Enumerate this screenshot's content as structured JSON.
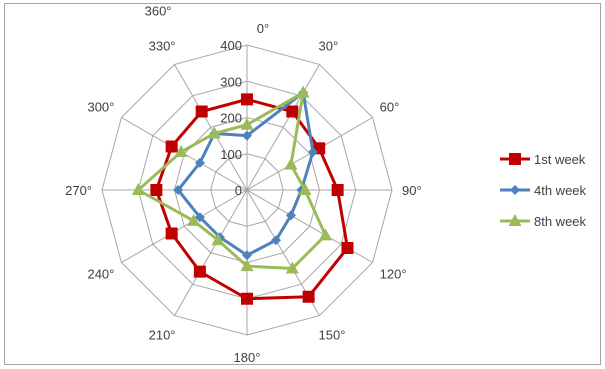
{
  "chart_data": {
    "type": "radar",
    "categories": [
      "0°",
      "30°",
      "60°",
      "90°",
      "120°",
      "150°",
      "180°",
      "210°",
      "240°",
      "270°",
      "300°",
      "330°"
    ],
    "extra_labels": {
      "360": "360°"
    },
    "radial_ticks": [
      "0",
      "100",
      "200",
      "300",
      "400"
    ],
    "rlim": [
      0,
      400
    ],
    "grid": true,
    "legend_position": "right",
    "series": [
      {
        "name": "1st week",
        "color": "#c00000",
        "marker": "square",
        "values": [
          250,
          250,
          230,
          250,
          320,
          340,
          300,
          260,
          240,
          250,
          240,
          250
        ]
      },
      {
        "name": "4th week",
        "color": "#4f81bd",
        "marker": "diamond",
        "values": [
          150,
          310,
          210,
          150,
          140,
          160,
          180,
          150,
          150,
          190,
          150,
          180
        ]
      },
      {
        "name": "8th week",
        "color": "#9bbb59",
        "marker": "triangle",
        "values": [
          180,
          310,
          140,
          160,
          250,
          250,
          210,
          160,
          170,
          300,
          210,
          180
        ]
      }
    ]
  }
}
